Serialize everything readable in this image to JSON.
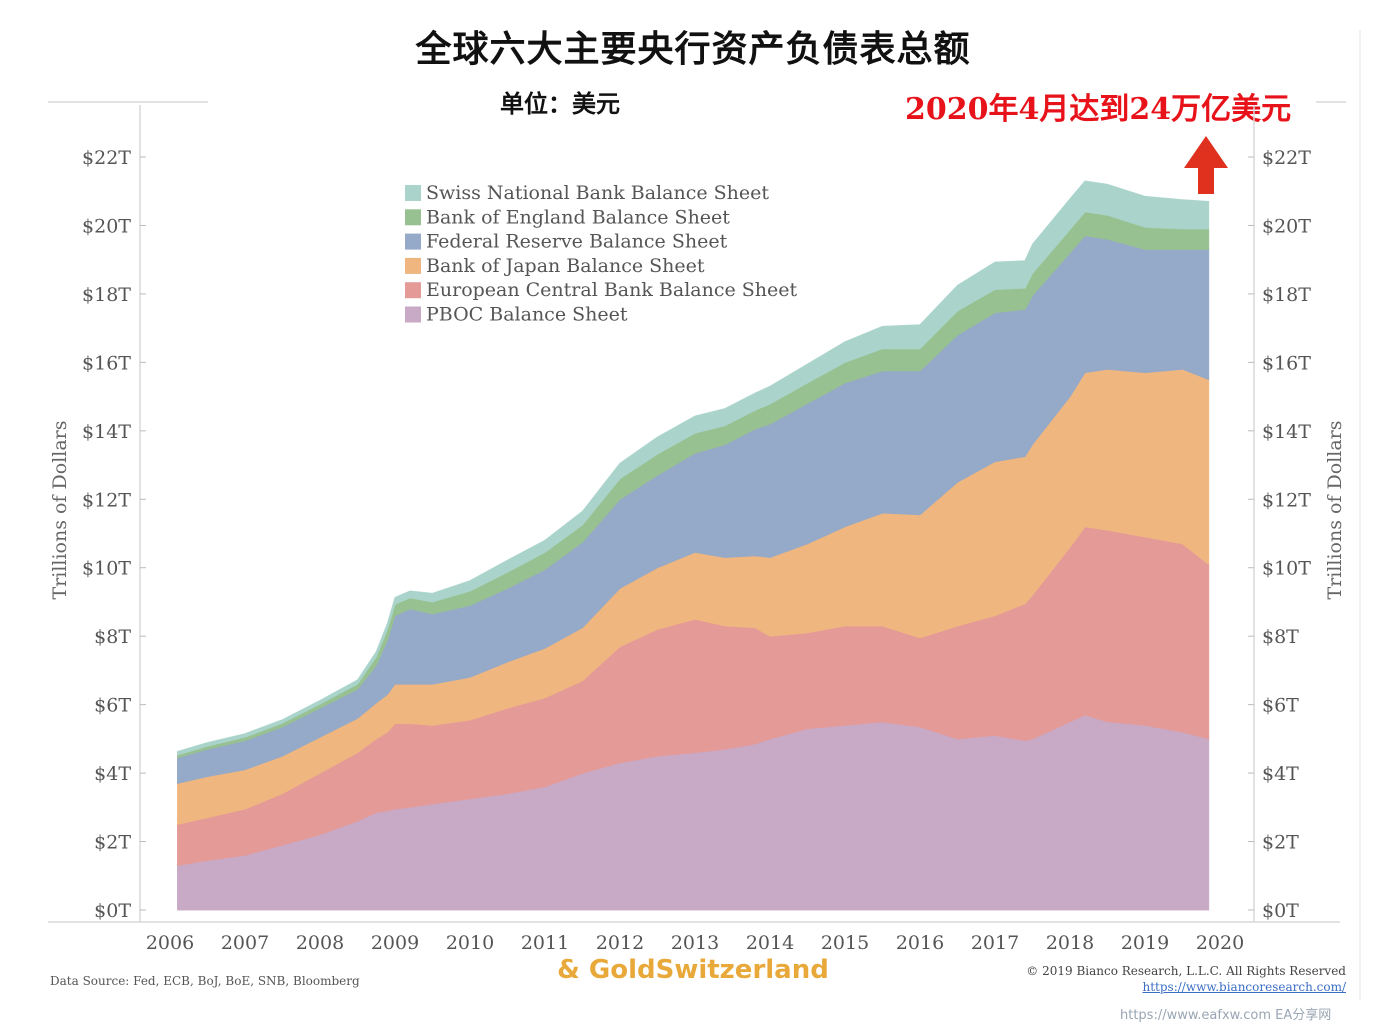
{
  "title": "全球六大主要央行资产负债表总额",
  "unit": "单位：美元",
  "highlight": "2020年4月达到24万亿美元",
  "footer": {
    "source": "Data Source: Fed, ECB, BoJ, BoE, SNB, Bloomberg",
    "brand": "& GoldSwitzerland",
    "copyright": "© 2019 Bianco Research, L.L.C. All Rights Reserved",
    "url": "https://www.biancoresearch.com/",
    "watermark": "https://www.eafxw.com  EA分享网"
  },
  "colors": {
    "arrow": "#e0301e",
    "highlight_text": "#e8121a"
  },
  "chart_data": {
    "type": "area",
    "stacked": true,
    "ylabel_left": "Trillions of Dollars",
    "ylabel_right": "Trillions of Dollars",
    "ylim": [
      0,
      23
    ],
    "yticks": [
      0,
      2,
      4,
      6,
      8,
      10,
      12,
      14,
      16,
      18,
      20,
      22
    ],
    "ytick_labels": [
      "$0T",
      "$2T",
      "$4T",
      "$6T",
      "$8T",
      "$10T",
      "$12T",
      "$14T",
      "$16T",
      "$18T",
      "$20T",
      "$22T"
    ],
    "xlim": [
      2005.6,
      2020.4
    ],
    "xticks": [
      2006,
      2007,
      2008,
      2009,
      2010,
      2011,
      2012,
      2013,
      2014,
      2015,
      2016,
      2017,
      2018,
      2019,
      2020
    ],
    "xtick_labels": [
      "2006",
      "2007",
      "2008",
      "2009",
      "2010",
      "2011",
      "2012",
      "2013",
      "2014",
      "2015",
      "2016",
      "2017",
      "2018",
      "2019",
      "2020"
    ],
    "legend_position": "top-left",
    "x": [
      2006.1,
      2006.5,
      2007.0,
      2007.5,
      2008.0,
      2008.5,
      2008.75,
      2008.9,
      2009.0,
      2009.2,
      2009.5,
      2010.0,
      2010.5,
      2011.0,
      2011.5,
      2012.0,
      2012.5,
      2013.0,
      2013.4,
      2013.8,
      2014.0,
      2014.5,
      2015.0,
      2015.5,
      2016.0,
      2016.5,
      2017.0,
      2017.4,
      2017.5,
      2018.0,
      2018.2,
      2018.5,
      2019.0,
      2019.5,
      2019.85
    ],
    "series": [
      {
        "name": "PBOC Balance Sheet",
        "color": "#c8a9c6",
        "values": [
          1.3,
          1.45,
          1.6,
          1.9,
          2.2,
          2.6,
          2.85,
          2.9,
          2.95,
          3.0,
          3.1,
          3.25,
          3.4,
          3.6,
          4.0,
          4.3,
          4.5,
          4.6,
          4.7,
          4.85,
          5.0,
          5.3,
          5.4,
          5.5,
          5.35,
          5.0,
          5.1,
          4.95,
          5.0,
          5.5,
          5.7,
          5.5,
          5.4,
          5.2,
          5.0
        ]
      },
      {
        "name": "European Central Bank Balance Sheet",
        "color": "#e49a97",
        "values": [
          1.2,
          1.25,
          1.35,
          1.5,
          1.8,
          2.0,
          2.15,
          2.3,
          2.5,
          2.45,
          2.3,
          2.3,
          2.5,
          2.6,
          2.7,
          3.4,
          3.7,
          3.9,
          3.6,
          3.4,
          3.0,
          2.8,
          2.9,
          2.8,
          2.6,
          3.3,
          3.5,
          4.0,
          4.2,
          5.1,
          5.5,
          5.6,
          5.5,
          5.5,
          5.1
        ]
      },
      {
        "name": "Bank of Japan Balance Sheet",
        "color": "#efb77f",
        "values": [
          1.2,
          1.2,
          1.15,
          1.1,
          1.05,
          1.0,
          1.05,
          1.1,
          1.15,
          1.15,
          1.2,
          1.25,
          1.35,
          1.45,
          1.55,
          1.7,
          1.8,
          1.95,
          2.0,
          2.1,
          2.3,
          2.6,
          2.9,
          3.3,
          3.6,
          4.2,
          4.5,
          4.3,
          4.4,
          4.4,
          4.5,
          4.7,
          4.8,
          5.1,
          5.4
        ]
      },
      {
        "name": "Federal Reserve Balance Sheet",
        "color": "#95a9c8",
        "values": [
          0.75,
          0.8,
          0.85,
          0.85,
          0.85,
          0.85,
          1.1,
          1.6,
          2.0,
          2.2,
          2.05,
          2.1,
          2.15,
          2.3,
          2.5,
          2.6,
          2.7,
          2.9,
          3.3,
          3.7,
          3.9,
          4.1,
          4.2,
          4.15,
          4.2,
          4.3,
          4.35,
          4.3,
          4.35,
          4.2,
          4.0,
          3.8,
          3.6,
          3.5,
          3.8
        ]
      },
      {
        "name": "Bank of England Balance Sheet",
        "color": "#98c191",
        "values": [
          0.08,
          0.09,
          0.1,
          0.11,
          0.12,
          0.15,
          0.25,
          0.3,
          0.33,
          0.32,
          0.35,
          0.42,
          0.47,
          0.5,
          0.5,
          0.6,
          0.62,
          0.58,
          0.55,
          0.55,
          0.58,
          0.6,
          0.6,
          0.65,
          0.65,
          0.7,
          0.68,
          0.62,
          0.65,
          0.68,
          0.7,
          0.7,
          0.65,
          0.6,
          0.6
        ]
      },
      {
        "name": "Swiss National Bank Balance Sheet",
        "color": "#aad4cb",
        "values": [
          0.1,
          0.1,
          0.1,
          0.1,
          0.1,
          0.12,
          0.15,
          0.18,
          0.2,
          0.2,
          0.25,
          0.3,
          0.35,
          0.35,
          0.4,
          0.45,
          0.5,
          0.5,
          0.5,
          0.5,
          0.52,
          0.55,
          0.6,
          0.65,
          0.7,
          0.75,
          0.8,
          0.8,
          0.85,
          0.9,
          0.9,
          0.9,
          0.9,
          0.85,
          0.8
        ]
      }
    ]
  }
}
